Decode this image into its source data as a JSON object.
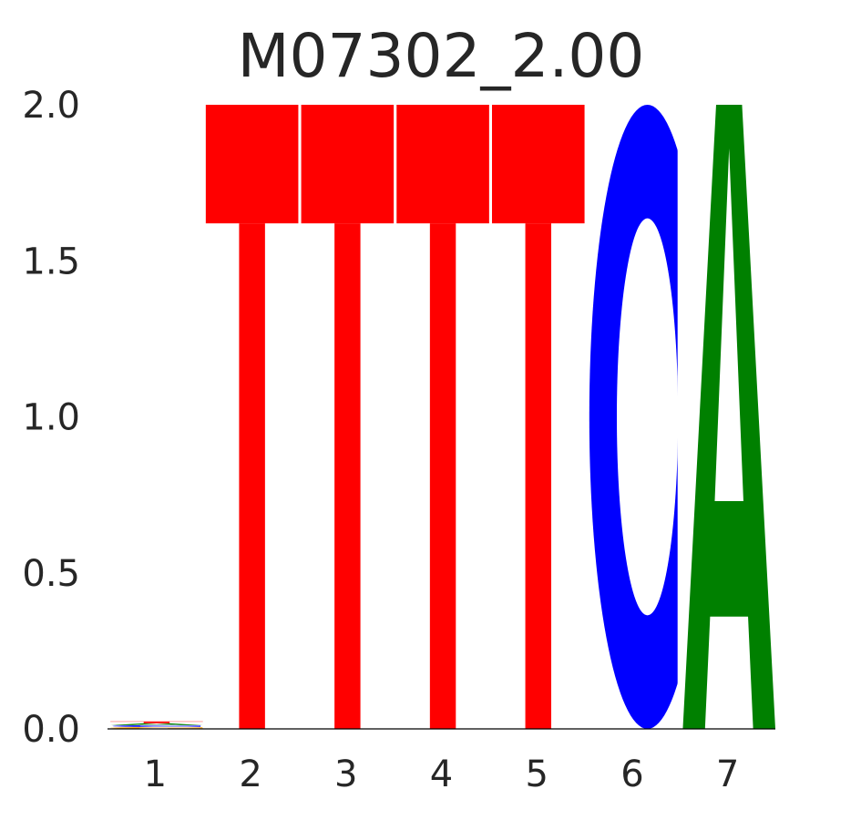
{
  "chart_data": {
    "type": "sequence-logo",
    "title": "M07302_2.00",
    "xlabel": "",
    "ylabel": "",
    "ylim": [
      0,
      2.0
    ],
    "y_ticks": [
      "0.0",
      "0.5",
      "1.0",
      "1.5",
      "2.0"
    ],
    "y_tick_values": [
      0,
      0.5,
      1.0,
      1.5,
      2.0
    ],
    "categories": [
      "1",
      "2",
      "3",
      "4",
      "5",
      "6",
      "7"
    ],
    "grid": false,
    "colors": {
      "A": "#008000",
      "C": "#0000ff",
      "G": "#ffa500",
      "T": "#ff0000"
    },
    "positions": [
      {
        "position": "1",
        "letters": [
          {
            "base": "G",
            "height": 0.006
          },
          {
            "base": "C",
            "height": 0.006
          },
          {
            "base": "A",
            "height": 0.006
          },
          {
            "base": "T",
            "height": 0.006
          }
        ]
      },
      {
        "position": "2",
        "letters": [
          {
            "base": "T",
            "height": 2.0
          }
        ]
      },
      {
        "position": "3",
        "letters": [
          {
            "base": "T",
            "height": 2.0
          }
        ]
      },
      {
        "position": "4",
        "letters": [
          {
            "base": "T",
            "height": 2.0
          }
        ]
      },
      {
        "position": "5",
        "letters": [
          {
            "base": "T",
            "height": 2.0
          }
        ]
      },
      {
        "position": "6",
        "letters": [
          {
            "base": "C",
            "height": 2.0
          }
        ]
      },
      {
        "position": "7",
        "letters": [
          {
            "base": "A",
            "height": 2.0
          }
        ]
      }
    ]
  }
}
